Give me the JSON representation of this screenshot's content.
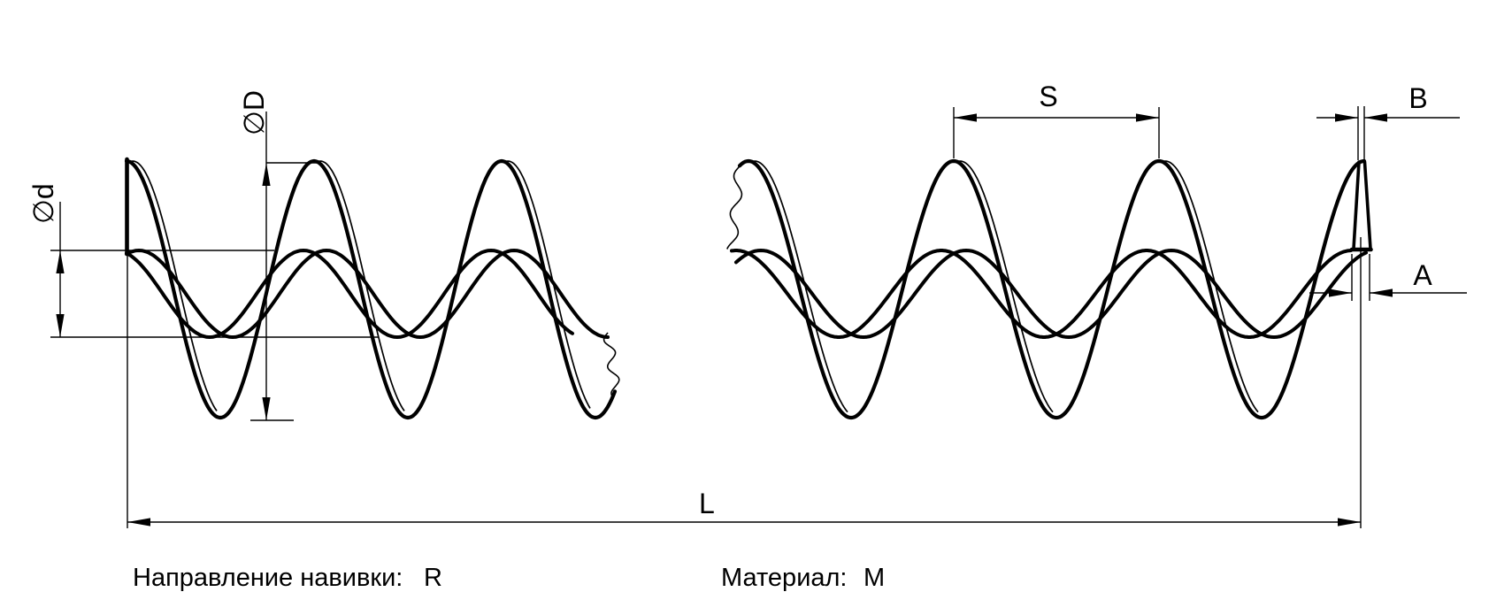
{
  "drawing": {
    "dimensions": {
      "outer_diameter": "∅D",
      "inner_diameter": "∅d",
      "pitch": "S",
      "strip_thickness": "B",
      "strip_width": "A",
      "total_length": "L"
    },
    "notes": {
      "winding_label": "Направление навивки:",
      "winding_value": "R",
      "material_label": "Материал:",
      "material_value": "M"
    },
    "colors": {
      "line": "#000000",
      "background": "#ffffff"
    }
  }
}
